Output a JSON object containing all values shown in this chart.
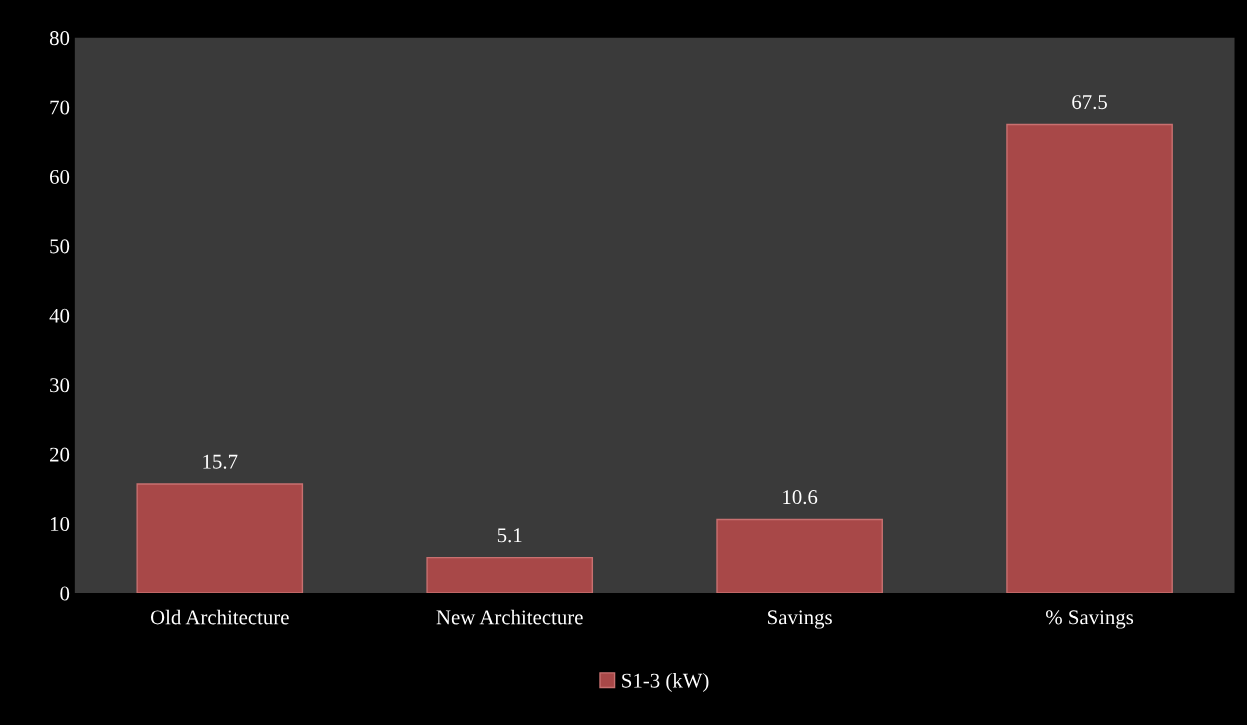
{
  "chart_data": {
    "type": "bar",
    "categories": [
      "Old Architecture",
      "New Architecture",
      "Savings",
      "% Savings"
    ],
    "series": [
      {
        "name": "S1-3 (kW)",
        "color": "#a84848",
        "values": [
          15.7,
          5.1,
          10.6,
          67.5
        ]
      }
    ],
    "ylim": [
      0,
      80
    ],
    "yticks": [
      0,
      10,
      20,
      30,
      40,
      50,
      60,
      70,
      80
    ],
    "data_labels": true,
    "legend": "bottom",
    "grid": false
  }
}
